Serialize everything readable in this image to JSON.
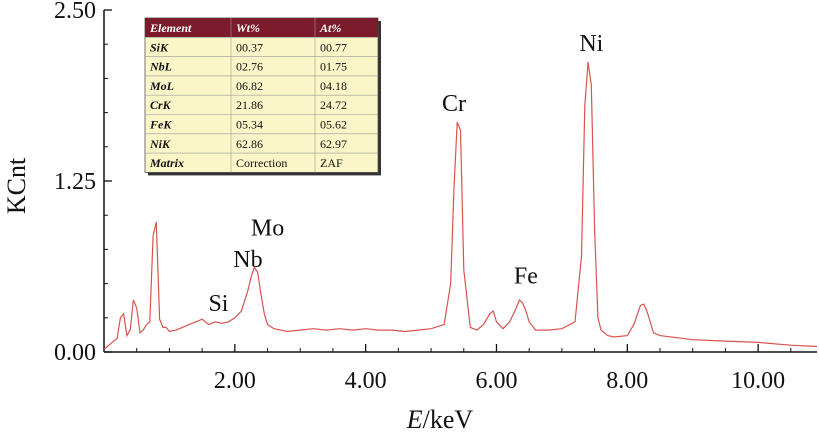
{
  "chart_data": {
    "type": "line",
    "xlabel_italic": "E",
    "xlabel_unit": "/keV",
    "ylabel": "KCnt",
    "xlim": [
      0.0,
      10.9
    ],
    "ylim": [
      0.0,
      2.5
    ],
    "x_ticks": [
      2.0,
      4.0,
      6.0,
      8.0,
      10.0
    ],
    "x_tick_labels": [
      "2.00",
      "4.00",
      "6.00",
      "8.00",
      "10.00"
    ],
    "y_ticks": [
      0.0,
      1.25,
      2.5
    ],
    "y_tick_labels": [
      "0.00",
      "1.25",
      "2.50"
    ],
    "grid": false,
    "line_color": "#d9534f",
    "series": [
      {
        "x": [
          0.0,
          0.15,
          0.2,
          0.25,
          0.3,
          0.35,
          0.4,
          0.45,
          0.5,
          0.55,
          0.6,
          0.65,
          0.7,
          0.75,
          0.8,
          0.85,
          0.9,
          0.95,
          1.0,
          1.1,
          1.2,
          1.3,
          1.4,
          1.5,
          1.6,
          1.7,
          1.8,
          1.9,
          2.0,
          2.1,
          2.2,
          2.25,
          2.3,
          2.35,
          2.4,
          2.45,
          2.5,
          2.6,
          2.7,
          2.8,
          3.0,
          3.2,
          3.4,
          3.6,
          3.8,
          4.0,
          4.2,
          4.4,
          4.6,
          4.8,
          5.0,
          5.2,
          5.3,
          5.35,
          5.4,
          5.45,
          5.5,
          5.6,
          5.7,
          5.8,
          5.9,
          5.95,
          6.0,
          6.1,
          6.2,
          6.3,
          6.35,
          6.4,
          6.45,
          6.5,
          6.6,
          6.8,
          7.0,
          7.2,
          7.3,
          7.35,
          7.4,
          7.45,
          7.5,
          7.55,
          7.6,
          7.7,
          7.8,
          8.0,
          8.1,
          8.2,
          8.25,
          8.3,
          8.4,
          8.5,
          9.0,
          9.5,
          10.0,
          10.5,
          10.9
        ],
        "y": [
          0.02,
          0.08,
          0.1,
          0.25,
          0.28,
          0.12,
          0.16,
          0.38,
          0.32,
          0.14,
          0.16,
          0.2,
          0.22,
          0.85,
          0.95,
          0.24,
          0.18,
          0.18,
          0.15,
          0.16,
          0.18,
          0.2,
          0.22,
          0.24,
          0.2,
          0.22,
          0.21,
          0.22,
          0.25,
          0.3,
          0.45,
          0.55,
          0.62,
          0.58,
          0.42,
          0.28,
          0.2,
          0.17,
          0.16,
          0.15,
          0.16,
          0.17,
          0.16,
          0.17,
          0.16,
          0.17,
          0.16,
          0.16,
          0.15,
          0.16,
          0.17,
          0.2,
          0.5,
          1.2,
          1.68,
          1.62,
          0.6,
          0.18,
          0.16,
          0.2,
          0.28,
          0.3,
          0.22,
          0.17,
          0.22,
          0.32,
          0.38,
          0.36,
          0.3,
          0.22,
          0.16,
          0.16,
          0.17,
          0.22,
          0.7,
          1.8,
          2.12,
          1.95,
          0.9,
          0.25,
          0.16,
          0.12,
          0.11,
          0.12,
          0.2,
          0.34,
          0.35,
          0.3,
          0.14,
          0.12,
          0.09,
          0.08,
          0.07,
          0.05,
          0.04
        ]
      }
    ],
    "annotations": [
      {
        "text": "Si",
        "x": 1.75,
        "y": 0.3
      },
      {
        "text": "Nb",
        "x": 2.2,
        "y": 0.62
      },
      {
        "text": "Mo",
        "x": 2.5,
        "y": 0.85
      },
      {
        "text": "Cr",
        "x": 5.35,
        "y": 1.76
      },
      {
        "text": "Fe",
        "x": 6.45,
        "y": 0.5
      },
      {
        "text": "Ni",
        "x": 7.45,
        "y": 2.2
      }
    ]
  },
  "table": {
    "header_color": "#7b1b2b",
    "body_color": "#fbf6c8",
    "headers": [
      "Element",
      "Wt%",
      "At%"
    ],
    "rows": [
      [
        "SiK",
        "00.37",
        "00.77"
      ],
      [
        "NbL",
        "02.76",
        "01.75"
      ],
      [
        "MoL",
        "06.82",
        "04.18"
      ],
      [
        "CrK",
        "21.86",
        "24.72"
      ],
      [
        "FeK",
        "05.34",
        "05.62"
      ],
      [
        "NiK",
        "62.86",
        "62.97"
      ],
      [
        "Matrix",
        "Correction",
        "ZAF"
      ]
    ]
  }
}
